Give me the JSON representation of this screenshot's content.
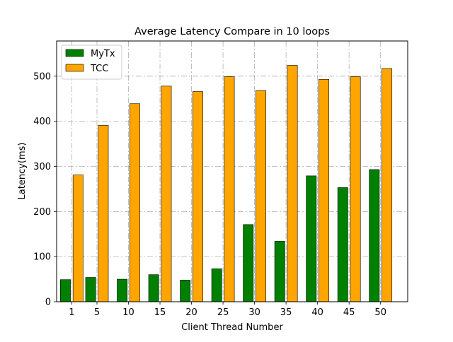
{
  "chart_data": {
    "type": "bar",
    "title": "Average Latency Compare in 10 loops",
    "xlabel": "Client Thread Number",
    "ylabel": "Latency(ms)",
    "categories": [
      "1",
      "5",
      "10",
      "15",
      "20",
      "25",
      "30",
      "35",
      "40",
      "45",
      "50"
    ],
    "category_values": [
      1,
      5,
      10,
      15,
      20,
      25,
      30,
      35,
      40,
      45,
      50
    ],
    "x_range": [
      -1.4,
      54.3
    ],
    "ylim": [
      0,
      578
    ],
    "yticks": [
      0,
      100,
      200,
      300,
      400,
      500
    ],
    "series": [
      {
        "name": "MyTx",
        "color": "#008000",
        "values": [
          49,
          54,
          50,
          60,
          48,
          73,
          171,
          134,
          279,
          253,
          293
        ]
      },
      {
        "name": "TCC",
        "color": "#FFA500",
        "values": [
          281,
          391,
          439,
          478,
          466,
          499,
          468,
          524,
          493,
          499,
          517
        ]
      }
    ],
    "grid": true,
    "legend_position": "top-left"
  }
}
